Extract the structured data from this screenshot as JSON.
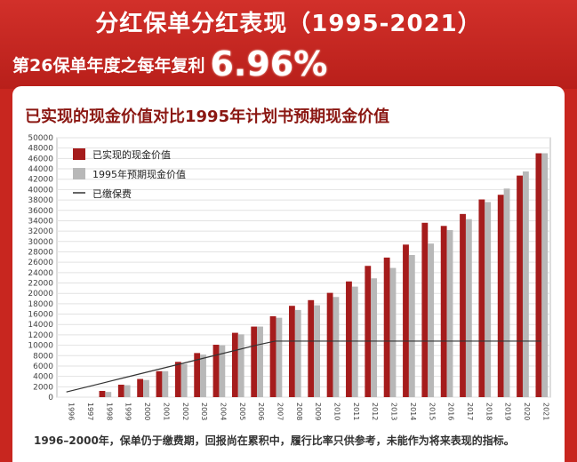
{
  "header": {
    "title": "分红保单分红表现（1995-2021）",
    "subtitle_prefix": "第26保单年度之每年复利",
    "subtitle_rate": "6.96%"
  },
  "chart_data": {
    "type": "bar",
    "title": "已实现的现金价值对比1995年计划书预期现金价值",
    "categories": [
      "1996",
      "1997",
      "1998",
      "1999",
      "2000",
      "2001",
      "2002",
      "2003",
      "2004",
      "2005",
      "2006",
      "2007",
      "2008",
      "2009",
      "2010",
      "2011",
      "2012",
      "2013",
      "2014",
      "2015",
      "2016",
      "2017",
      "2018",
      "2019",
      "2020",
      "2021"
    ],
    "series": [
      {
        "name": "已实现的现金价值",
        "color": "#a51c1c",
        "values": [
          0,
          0,
          1200,
          2400,
          3500,
          5000,
          6800,
          8500,
          10100,
          12400,
          13600,
          15600,
          17600,
          18700,
          20100,
          22300,
          25300,
          26900,
          29400,
          33600,
          33000,
          35300,
          38100,
          39000,
          42700,
          47000
        ]
      },
      {
        "name": "1995年预期现金价值",
        "color": "#b8b8b8",
        "values": [
          0,
          0,
          1000,
          2300,
          3300,
          5000,
          6400,
          8200,
          10000,
          12100,
          13600,
          15300,
          16800,
          17700,
          19300,
          21300,
          22900,
          24900,
          27400,
          29600,
          32200,
          34300,
          37600,
          40200,
          43500,
          47000
        ]
      },
      {
        "name": "已缴保费",
        "color": "#333333",
        "type": "line",
        "values": [
          1000,
          1900,
          2800,
          3700,
          4600,
          5500,
          6400,
          7300,
          8200,
          9100,
          10000,
          10800,
          10800,
          10800,
          10800,
          10800,
          10800,
          10800,
          10800,
          10800,
          10800,
          10800,
          10800,
          10800,
          10800,
          10800
        ]
      }
    ],
    "yticks": [
      0,
      2000,
      4000,
      6000,
      8000,
      10000,
      12000,
      14000,
      16000,
      18000,
      20000,
      22000,
      24000,
      26000,
      28000,
      30000,
      32000,
      34000,
      36000,
      38000,
      40000,
      42000,
      44000,
      46000,
      48000,
      50000
    ],
    "ylim": [
      0,
      50000
    ],
    "grid": true,
    "legend": "top-left"
  },
  "footnote": "1996–2000年，保单仍于缴费期，回报尚在累积中，履行比率只供参考，未能作为将来表现的指标。"
}
